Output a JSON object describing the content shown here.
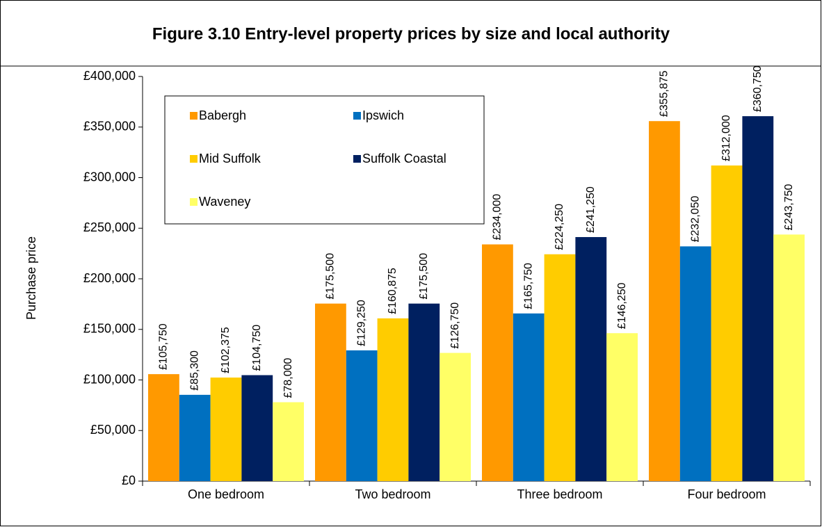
{
  "chart_data": {
    "type": "bar",
    "title": "Figure 3.10 Entry-level property prices by size and local authority",
    "ylabel": "Purchase price",
    "categories": [
      "One bedroom",
      "Two bedroom",
      "Three bedroom",
      "Four bedroom"
    ],
    "series": [
      {
        "name": "Babergh",
        "color": "#ff9900",
        "values": [
          105750,
          175500,
          234000,
          355875
        ],
        "value_labels": [
          "£105,750",
          "£175,500",
          "£234,000",
          "£355,875"
        ]
      },
      {
        "name": "Ipswich",
        "color": "#0070c0",
        "values": [
          85300,
          129250,
          165750,
          232050
        ],
        "value_labels": [
          "£85,300",
          "£129,250",
          "£165,750",
          "£232,050"
        ]
      },
      {
        "name": "Mid Suffolk",
        "color": "#ffcc00",
        "values": [
          102375,
          160875,
          224250,
          312000
        ],
        "value_labels": [
          "£102,375",
          "£160,875",
          "£224,250",
          "£312,000"
        ]
      },
      {
        "name": "Suffolk Coastal",
        "color": "#002060",
        "values": [
          104750,
          175500,
          241250,
          360750
        ],
        "value_labels": [
          "£104,750",
          "£175,500",
          "£241,250",
          "£360,750"
        ]
      },
      {
        "name": "Waveney",
        "color": "#ffff66",
        "values": [
          78000,
          126750,
          146250,
          243750
        ],
        "value_labels": [
          "£78,000",
          "£126,750",
          "£146,250",
          "£243,750"
        ]
      }
    ],
    "ylim": [
      0,
      400000
    ],
    "yticks": [
      {
        "value": 0,
        "label": "£0"
      },
      {
        "value": 50000,
        "label": "£50,000"
      },
      {
        "value": 100000,
        "label": "£100,000"
      },
      {
        "value": 150000,
        "label": "£150,000"
      },
      {
        "value": 200000,
        "label": "£200,000"
      },
      {
        "value": 250000,
        "label": "£250,000"
      },
      {
        "value": 300000,
        "label": "£300,000"
      },
      {
        "value": 350000,
        "label": "£350,000"
      },
      {
        "value": 400000,
        "label": "£400,000"
      }
    ],
    "legend": "upper left",
    "grid": false
  }
}
